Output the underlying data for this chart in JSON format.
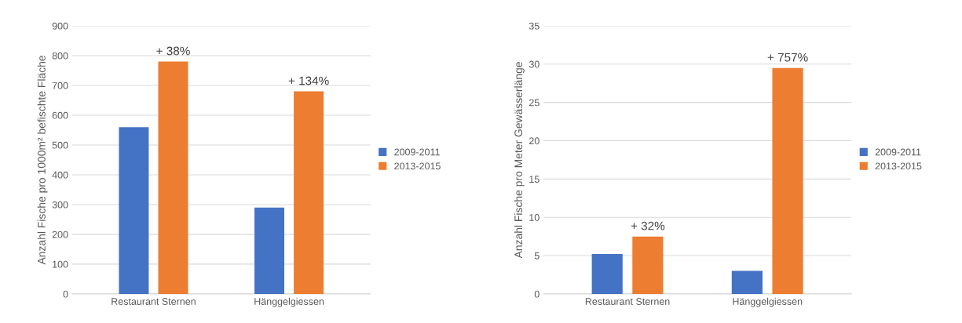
{
  "chart_data": [
    {
      "type": "bar",
      "ylabel": "Anzahl Fische pro 1000m² befischte Fläche",
      "categories": [
        "Restaurant Sternen",
        "Hänggelgiessen"
      ],
      "series": [
        {
          "name": "2009-2011",
          "color": "#4472c4",
          "values": [
            560,
            290
          ]
        },
        {
          "name": "2013-2015",
          "color": "#ed7d31",
          "values": [
            780,
            680
          ]
        }
      ],
      "ylim": [
        0,
        900
      ],
      "yticks": [
        0,
        100,
        200,
        300,
        400,
        500,
        600,
        700,
        800,
        900
      ],
      "grid": "y",
      "legend": "right",
      "annotations": [
        "+ 38%",
        "+ 134%"
      ]
    },
    {
      "type": "bar",
      "ylabel": "Anzahl Fische pro Meter Gewässerlänge",
      "categories": [
        "Restaurant Sternen",
        "Hänggelgiessen"
      ],
      "series": [
        {
          "name": "2009-2011",
          "color": "#4472c4",
          "values": [
            5.2,
            3.0
          ]
        },
        {
          "name": "2013-2015",
          "color": "#ed7d31",
          "values": [
            7.5,
            29.5
          ]
        }
      ],
      "ylim": [
        0,
        35
      ],
      "yticks": [
        0,
        5,
        10,
        15,
        20,
        25,
        30,
        35
      ],
      "grid": "y",
      "legend": "right",
      "annotations": [
        "+ 32%",
        "+ 757%"
      ]
    }
  ]
}
